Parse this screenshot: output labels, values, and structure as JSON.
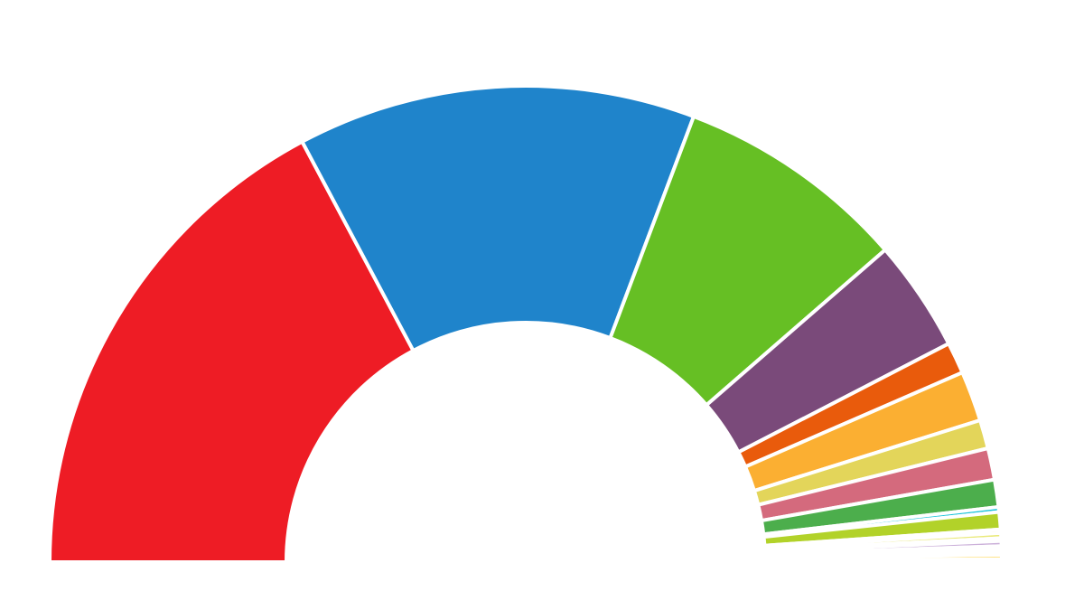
{
  "chart_data": {
    "type": "pie",
    "style": "half-donut",
    "values": [
      35.4,
      27.8,
      16.2,
      7.8,
      2.2,
      3.5,
      2.0,
      2.2,
      1.9,
      0.35,
      1.2,
      0.25,
      0.35,
      0.2,
      0.35,
      0.15,
      0.25,
      0.2,
      0.3,
      0.2
    ],
    "colors": [
      "#ee1c25",
      "#1f84cb",
      "#66bf24",
      "#7a4a7a",
      "#e95b0c",
      "#fbaf32",
      "#e3d55a",
      "#d46a7d",
      "#4cae4c",
      "#19c3d9",
      "#b2d229",
      "#f4e100",
      "#e9e978",
      "#7a4a7a",
      "#cbb0d9",
      "#e30613",
      "#ff8f8f",
      "#f4e100",
      "#ffd23c",
      "#ffe500"
    ]
  }
}
